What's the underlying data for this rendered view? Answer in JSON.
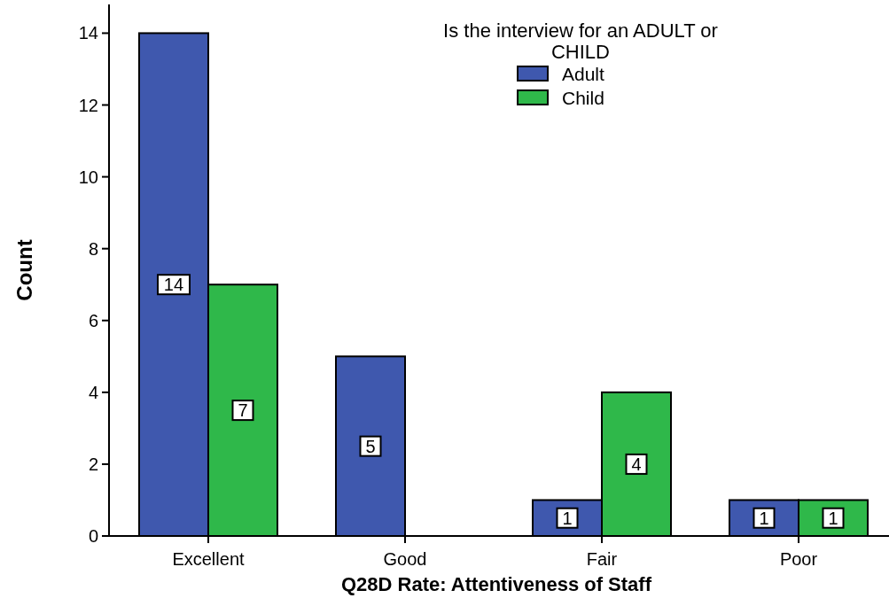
{
  "chart_data": {
    "type": "bar",
    "xlabel": "Q28D Rate: Attentiveness of Staff",
    "ylabel": "Count",
    "legend_title": "Is the interview for an ADULT or CHILD",
    "categories": [
      "Excellent",
      "Good",
      "Fair",
      "Poor"
    ],
    "series": [
      {
        "name": "Adult",
        "color": "#3f58ae",
        "values": [
          14,
          5,
          1,
          1
        ],
        "value_labels": [
          "14",
          "5",
          "1",
          "1"
        ]
      },
      {
        "name": "Child",
        "color": "#2fb84a",
        "values": [
          7,
          0,
          4,
          1
        ],
        "value_labels": [
          "7",
          null,
          "4",
          "1"
        ]
      }
    ],
    "ylim": [
      0,
      14.8
    ],
    "yticks": [
      0,
      2,
      4,
      6,
      8,
      10,
      12,
      14
    ],
    "legend": "top right",
    "grid": false
  }
}
